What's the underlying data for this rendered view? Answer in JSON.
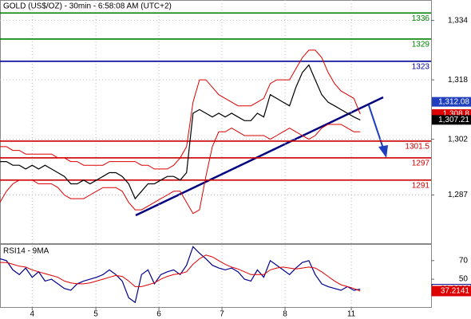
{
  "chart_data": [
    {
      "type": "line",
      "title": "GOLD (US$/OZ) - 30min - 6:58:08 AM (UTC+2)",
      "xlim": [
        0,
        67
      ],
      "xticks": [
        {
          "value": 5,
          "label": "4"
        },
        {
          "value": 14.9,
          "label": "5"
        },
        {
          "value": 24.7,
          "label": "6"
        },
        {
          "value": 34.5,
          "label": "7"
        },
        {
          "value": 44.3,
          "label": "8"
        },
        {
          "value": 54.6,
          "label": "11"
        }
      ],
      "ylim": [
        1274,
        1339.5
      ],
      "yticks": [
        {
          "value": 1287,
          "label": "1,287"
        },
        {
          "value": 1302,
          "label": "1,302"
        },
        {
          "value": 1318,
          "label": "1,318"
        },
        {
          "value": 1334,
          "label": "1,334"
        }
      ],
      "grid": true,
      "series": [
        {
          "color": "#000000",
          "values": [
            1296,
            1296,
            1295,
            1295,
            1294,
            1295,
            1294,
            1295,
            1294,
            1293,
            1292,
            1290,
            1290,
            1291,
            1290,
            1291,
            1292,
            1293,
            1293,
            1292,
            1290,
            1286,
            1288,
            1290,
            1290,
            1291,
            1292,
            1292,
            1291,
            1293,
            1309,
            1310,
            1309,
            1308,
            1309,
            1308,
            1309,
            1308,
            1307,
            1307,
            1309,
            1308,
            1314,
            1313,
            1312,
            1311,
            1316,
            1320,
            1322,
            1318,
            1314,
            1312,
            1311,
            1310,
            1309,
            1308,
            1307.21
          ]
        },
        {
          "color": "#dd0000",
          "values": [
            1300,
            1300,
            1299,
            1299,
            1298,
            1298,
            1298,
            1298,
            1298,
            1297,
            1297,
            1296,
            1296,
            1295,
            1295,
            1295,
            1295,
            1296,
            1296,
            1296,
            1296,
            1296,
            1295,
            1295,
            1294,
            1294,
            1294,
            1295,
            1297,
            1300,
            1312,
            1318,
            1318,
            1316,
            1314,
            1313,
            1312,
            1311,
            1311,
            1311,
            1312,
            1313,
            1317,
            1318,
            1318,
            1318,
            1321,
            1324,
            1326,
            1326,
            1324,
            1320,
            1317,
            1315,
            1314,
            1313,
            1308.8
          ]
        },
        {
          "color": "#dd0000",
          "values": [
            1285,
            1288,
            1290,
            1291,
            1291,
            1291,
            1290,
            1290,
            1290,
            1289,
            1287,
            1286,
            1286,
            1286,
            1287,
            1288,
            1289,
            1289,
            1289,
            1288,
            1285,
            1283,
            1283,
            1284,
            1285,
            1286,
            1287,
            1288,
            1288,
            1285,
            1282,
            1283,
            1292,
            1300,
            1304,
            1304,
            1305,
            1304,
            1303,
            1303,
            1303,
            1303,
            1302,
            1303,
            1304,
            1305,
            1304,
            1303,
            1302,
            1303,
            1305,
            1306,
            1306,
            1306,
            1305,
            1304,
            1304
          ]
        }
      ],
      "levels": [
        {
          "value": 1336,
          "color": "#008000"
        },
        {
          "value": 1329,
          "color": "#008000"
        },
        {
          "value": 1323,
          "color": "#000099"
        },
        {
          "value": 1301.5,
          "color": "#cc0000"
        },
        {
          "value": 1297,
          "color": "#cc0000"
        },
        {
          "value": 1291,
          "color": "#cc0000"
        }
      ],
      "price_labels": [
        {
          "value": 1312.08,
          "label": "1,312.08",
          "color": "#1f3fbf"
        },
        {
          "value": 1308.8,
          "label": "1,308.8",
          "color": "#dd0000"
        },
        {
          "value": 1307.21,
          "label": "1,307.21",
          "color": "#000000"
        }
      ]
    },
    {
      "type": "line",
      "title": "RSI14 - 9MA",
      "xlim": [
        0,
        67
      ],
      "ylim": [
        20,
        87
      ],
      "yticks": [
        50,
        70
      ],
      "series": [
        {
          "color": "#00008b",
          "values": [
            72,
            70,
            60,
            55,
            62,
            52,
            58,
            48,
            50,
            45,
            40,
            38,
            45,
            48,
            50,
            52,
            55,
            60,
            55,
            48,
            30,
            25,
            55,
            60,
            45,
            55,
            58,
            60,
            55,
            65,
            85,
            78,
            72,
            65,
            62,
            60,
            62,
            58,
            50,
            48,
            60,
            52,
            70,
            65,
            60,
            55,
            62,
            68,
            70,
            55,
            45,
            42,
            40,
            38,
            42,
            38,
            39.2608
          ]
        },
        {
          "color": "#dd0000",
          "values": [
            68,
            68,
            66,
            64,
            63,
            60,
            58,
            56,
            54,
            52,
            48,
            46,
            45,
            45,
            46,
            48,
            50,
            52,
            54,
            53,
            48,
            42,
            42,
            44,
            46,
            50,
            53,
            55,
            56,
            58,
            66,
            72,
            76,
            74,
            70,
            66,
            63,
            61,
            58,
            55,
            55,
            55,
            60,
            62,
            63,
            62,
            61,
            62,
            63,
            62,
            58,
            53,
            48,
            44,
            42,
            40,
            37.2141
          ]
        }
      ]
    }
  ]
}
